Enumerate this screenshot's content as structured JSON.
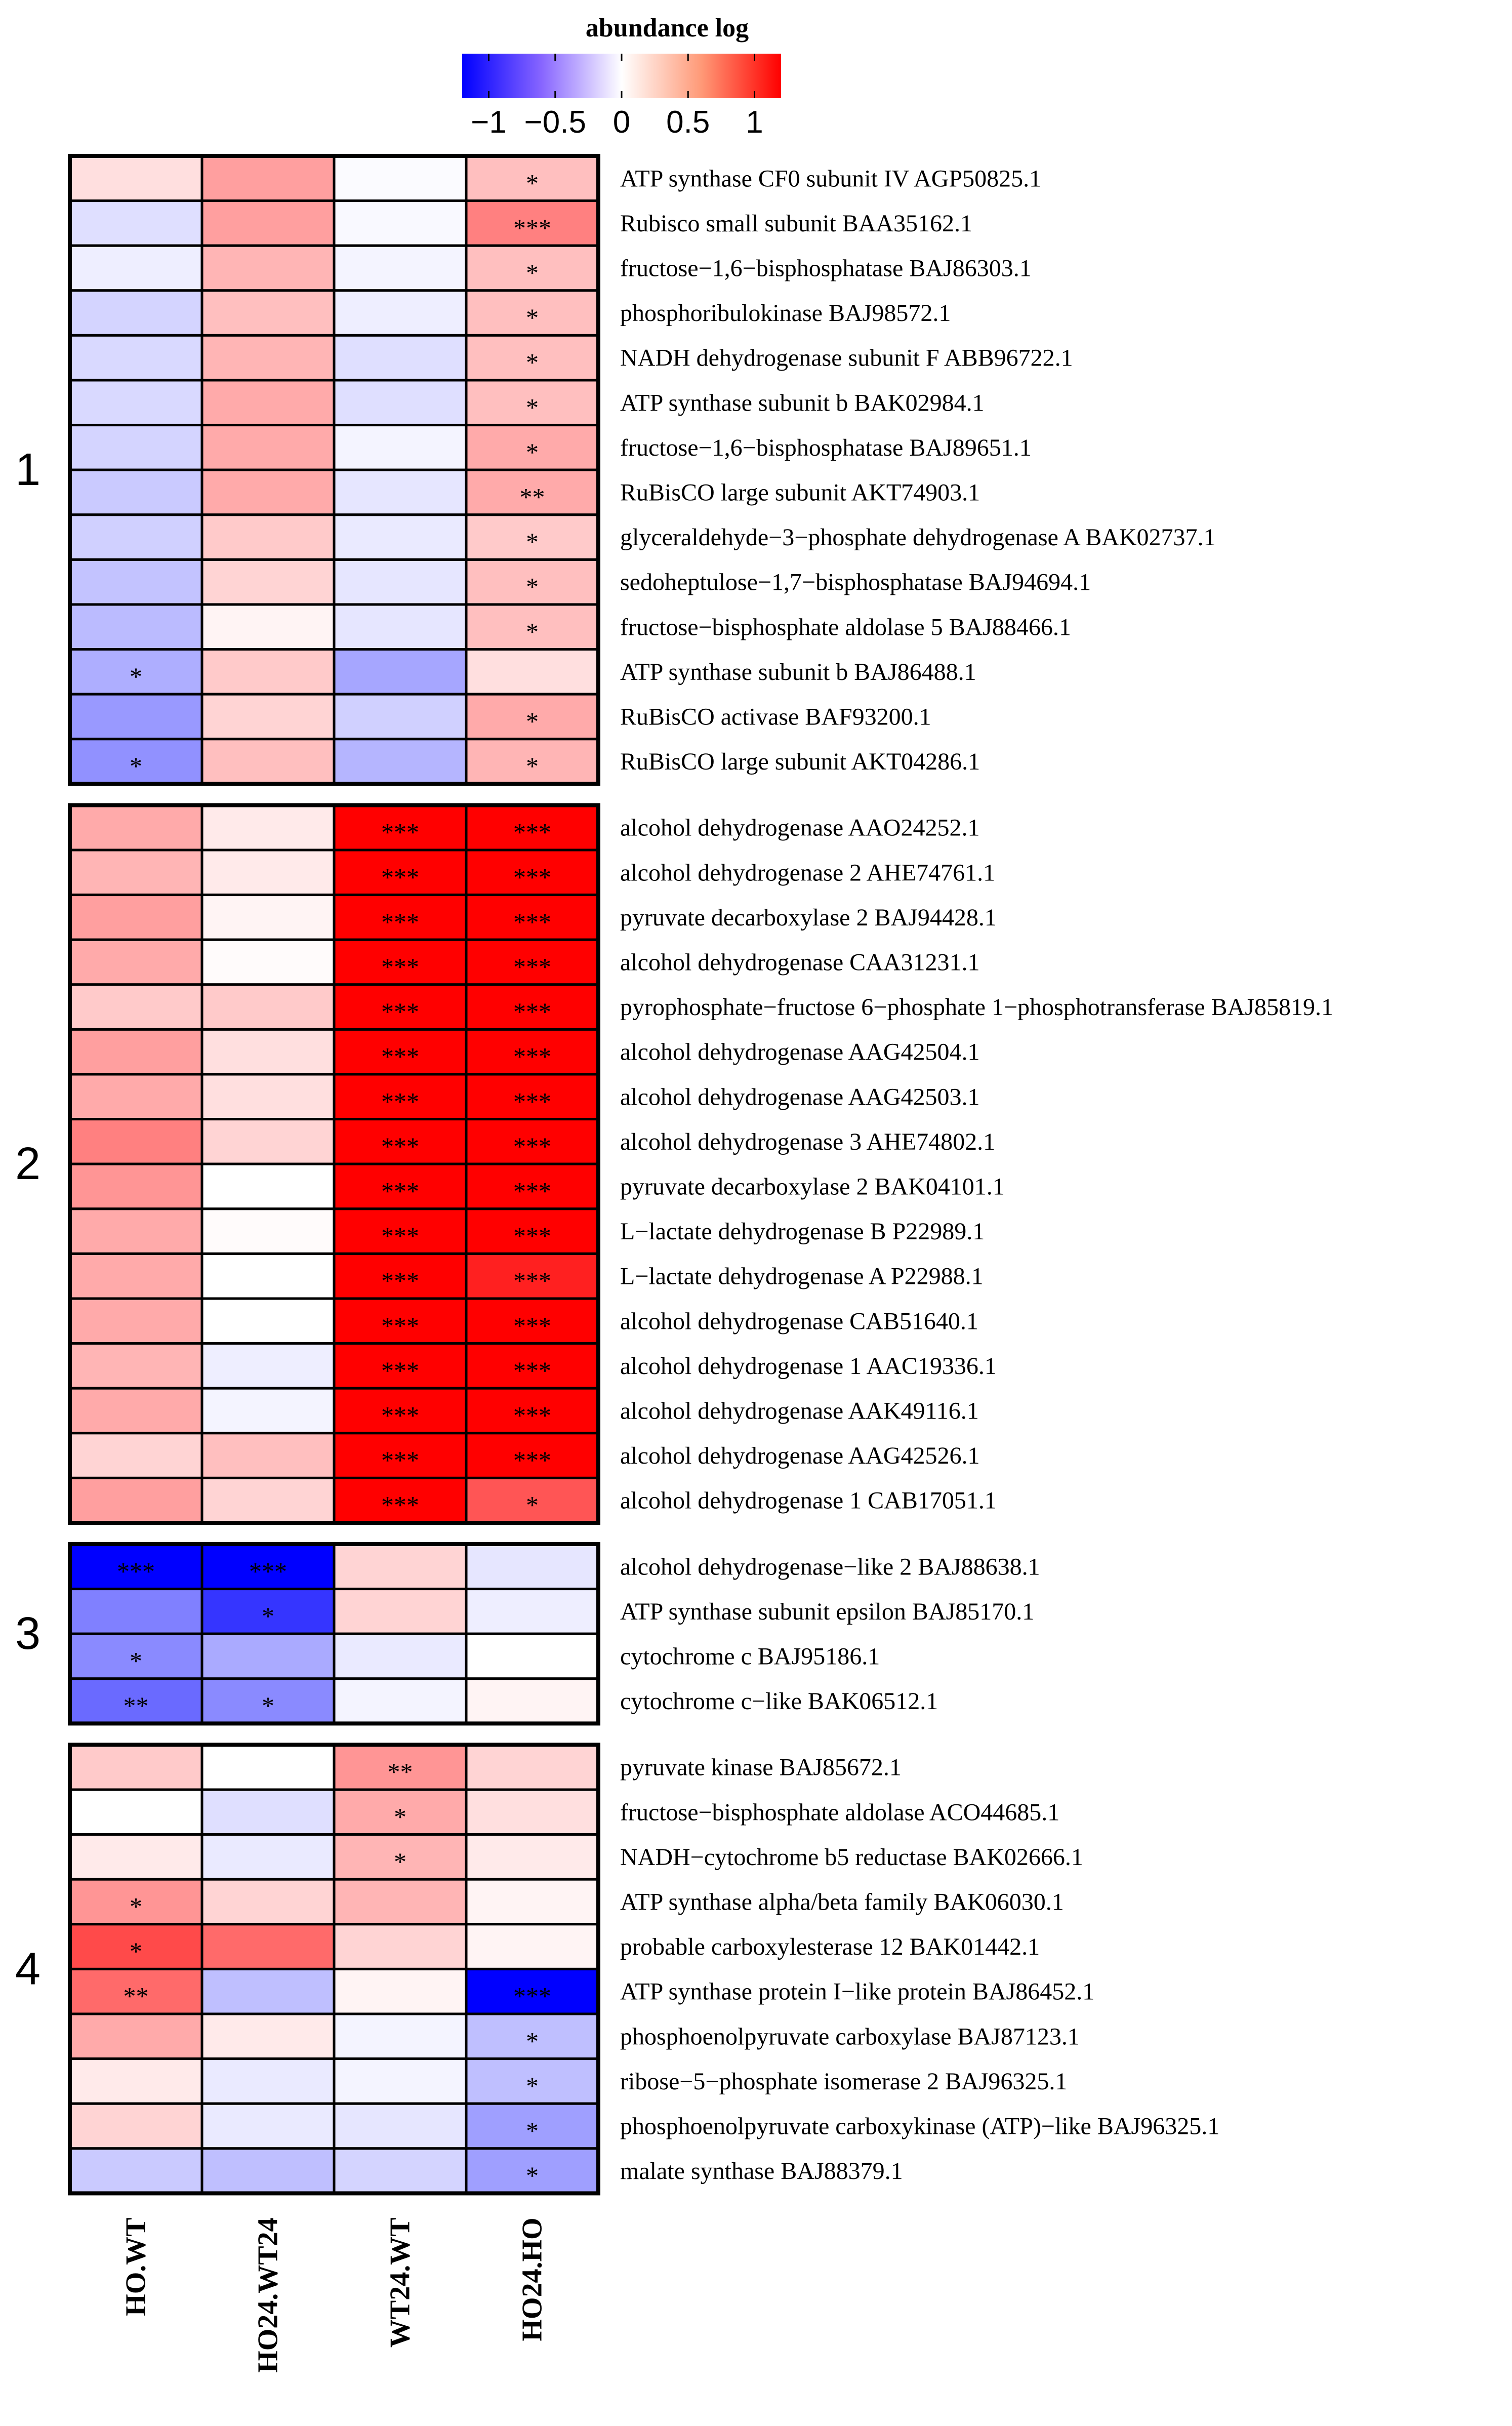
{
  "chart_data": {
    "type": "heatmap",
    "title": "abundance log",
    "colorbar": {
      "min": -1.2,
      "max": 1.2,
      "ticks": [
        -1,
        -0.5,
        0,
        0.5,
        1
      ],
      "tick_labels": [
        "−1",
        "−0.5",
        "0",
        "0.5",
        "1"
      ],
      "low_color": "#0000ff",
      "mid_color": "#ffffff",
      "high_color": "#ff0000"
    },
    "columns": [
      "HO.WT",
      "HO24.WT24",
      "WT24.WT",
      "HO24.HO"
    ],
    "clusters": [
      {
        "label": "1",
        "rows": [
          {
            "name": "ATP synthase CF0 subunit IV AGP50825.1",
            "values": [
              0.15,
              0.45,
              -0.02,
              0.3
            ],
            "sig": [
              "",
              "",
              "",
              "*"
            ]
          },
          {
            "name": "Rubisco small subunit BAA35162.1",
            "values": [
              -0.15,
              0.45,
              -0.03,
              0.6
            ],
            "sig": [
              "",
              "",
              "",
              "***"
            ]
          },
          {
            "name": "fructose−1,6−bisphosphatase BAJ86303.1",
            "values": [
              -0.08,
              0.35,
              -0.05,
              0.3
            ],
            "sig": [
              "",
              "",
              "",
              "*"
            ]
          },
          {
            "name": "phosphoribulokinase BAJ98572.1",
            "values": [
              -0.2,
              0.3,
              -0.08,
              0.3
            ],
            "sig": [
              "",
              "",
              "",
              "*"
            ]
          },
          {
            "name": "NADH dehydrogenase subunit F ABB96722.1",
            "values": [
              -0.18,
              0.35,
              -0.15,
              0.3
            ],
            "sig": [
              "",
              "",
              "",
              "*"
            ]
          },
          {
            "name": "ATP synthase subunit b BAK02984.1",
            "values": [
              -0.18,
              0.4,
              -0.15,
              0.3
            ],
            "sig": [
              "",
              "",
              "",
              "*"
            ]
          },
          {
            "name": "fructose−1,6−bisphosphatase BAJ89651.1",
            "values": [
              -0.2,
              0.4,
              -0.05,
              0.4
            ],
            "sig": [
              "",
              "",
              "",
              "*"
            ]
          },
          {
            "name": "RuBisCO large subunit AKT74903.1",
            "values": [
              -0.25,
              0.4,
              -0.12,
              0.4
            ],
            "sig": [
              "",
              "",
              "",
              "**"
            ]
          },
          {
            "name": "glyceraldehyde−3−phosphate dehydrogenase A BAK02737.1",
            "values": [
              -0.22,
              0.25,
              -0.1,
              0.25
            ],
            "sig": [
              "",
              "",
              "",
              "*"
            ]
          },
          {
            "name": "sedoheptulose−1,7−bisphosphatase BAJ94694.1",
            "values": [
              -0.28,
              0.2,
              -0.12,
              0.3
            ],
            "sig": [
              "",
              "",
              "",
              "*"
            ]
          },
          {
            "name": "fructose−bisphosphate aldolase 5 BAJ88466.1",
            "values": [
              -0.32,
              0.05,
              -0.12,
              0.3
            ],
            "sig": [
              "",
              "",
              "",
              "*"
            ]
          },
          {
            "name": "ATP synthase subunit b BAJ86488.1",
            "values": [
              -0.38,
              0.25,
              -0.42,
              0.15
            ],
            "sig": [
              "*",
              "",
              "",
              ""
            ]
          },
          {
            "name": "RuBisCO activase BAF93200.1",
            "values": [
              -0.48,
              0.2,
              -0.22,
              0.4
            ],
            "sig": [
              "",
              "",
              "",
              "*"
            ]
          },
          {
            "name": "RuBisCO large subunit AKT04286.1",
            "values": [
              -0.52,
              0.3,
              -0.35,
              0.35
            ],
            "sig": [
              "*",
              "",
              "",
              "*"
            ]
          }
        ]
      },
      {
        "label": "2",
        "rows": [
          {
            "name": "alcohol dehydrogenase AAO24252.1",
            "values": [
              0.4,
              0.1,
              1.2,
              1.2
            ],
            "sig": [
              "",
              "",
              "***",
              "***"
            ]
          },
          {
            "name": "alcohol dehydrogenase 2 AHE74761.1",
            "values": [
              0.35,
              0.1,
              1.2,
              1.2
            ],
            "sig": [
              "",
              "",
              "***",
              "***"
            ]
          },
          {
            "name": "pyruvate decarboxylase 2 BAJ94428.1",
            "values": [
              0.45,
              0.05,
              1.2,
              1.2
            ],
            "sig": [
              "",
              "",
              "***",
              "***"
            ]
          },
          {
            "name": "alcohol dehydrogenase CAA31231.1",
            "values": [
              0.4,
              0.02,
              1.2,
              1.2
            ],
            "sig": [
              "",
              "",
              "***",
              "***"
            ]
          },
          {
            "name": "pyrophosphate−fructose 6−phosphate 1−phosphotransferase BAJ85819.1",
            "values": [
              0.25,
              0.25,
              1.2,
              1.2
            ],
            "sig": [
              "",
              "",
              "***",
              "***"
            ]
          },
          {
            "name": "alcohol dehydrogenase AAG42504.1",
            "values": [
              0.45,
              0.15,
              1.2,
              1.2
            ],
            "sig": [
              "",
              "",
              "***",
              "***"
            ]
          },
          {
            "name": "alcohol dehydrogenase AAG42503.1",
            "values": [
              0.4,
              0.15,
              1.2,
              1.2
            ],
            "sig": [
              "",
              "",
              "***",
              "***"
            ]
          },
          {
            "name": "alcohol dehydrogenase 3 AHE74802.1",
            "values": [
              0.6,
              0.2,
              1.2,
              1.2
            ],
            "sig": [
              "",
              "",
              "***",
              "***"
            ]
          },
          {
            "name": "pyruvate decarboxylase 2 BAK04101.1",
            "values": [
              0.5,
              0.0,
              1.2,
              1.2
            ],
            "sig": [
              "",
              "",
              "***",
              "***"
            ]
          },
          {
            "name": "L−lactate dehydrogenase B P22989.1",
            "values": [
              0.4,
              0.02,
              1.2,
              1.2
            ],
            "sig": [
              "",
              "",
              "***",
              "***"
            ]
          },
          {
            "name": "L−lactate dehydrogenase A P22988.1",
            "values": [
              0.4,
              0.0,
              1.2,
              1.05
            ],
            "sig": [
              "",
              "",
              "***",
              "***"
            ]
          },
          {
            "name": "alcohol dehydrogenase CAB51640.1",
            "values": [
              0.4,
              0.0,
              1.2,
              1.2
            ],
            "sig": [
              "",
              "",
              "***",
              "***"
            ]
          },
          {
            "name": "alcohol dehydrogenase 1 AAC19336.1",
            "values": [
              0.35,
              -0.08,
              1.2,
              1.2
            ],
            "sig": [
              "",
              "",
              "***",
              "***"
            ]
          },
          {
            "name": "alcohol dehydrogenase AAK49116.1",
            "values": [
              0.4,
              -0.05,
              1.2,
              1.2
            ],
            "sig": [
              "",
              "",
              "***",
              "***"
            ]
          },
          {
            "name": "alcohol dehydrogenase AAG42526.1",
            "values": [
              0.2,
              0.3,
              1.2,
              1.2
            ],
            "sig": [
              "",
              "",
              "***",
              "***"
            ]
          },
          {
            "name": "alcohol dehydrogenase 1 CAB17051.1",
            "values": [
              0.45,
              0.2,
              1.2,
              0.8
            ],
            "sig": [
              "",
              "",
              "***",
              "*"
            ]
          }
        ]
      },
      {
        "label": "3",
        "rows": [
          {
            "name": "alcohol dehydrogenase−like 2 BAJ88638.1",
            "values": [
              -1.2,
              -1.2,
              0.2,
              -0.12
            ],
            "sig": [
              "***",
              "***",
              "",
              ""
            ]
          },
          {
            "name": "ATP synthase subunit epsilon BAJ85170.1",
            "values": [
              -0.6,
              -0.95,
              0.2,
              -0.08
            ],
            "sig": [
              "",
              "*",
              "",
              ""
            ]
          },
          {
            "name": "cytochrome c BAJ95186.1",
            "values": [
              -0.55,
              -0.4,
              -0.1,
              0.0
            ],
            "sig": [
              "*",
              "",
              "",
              ""
            ]
          },
          {
            "name": "cytochrome c−like BAK06512.1",
            "values": [
              -0.7,
              -0.55,
              -0.05,
              0.05
            ],
            "sig": [
              "**",
              "*",
              "",
              ""
            ]
          }
        ]
      },
      {
        "label": "4",
        "rows": [
          {
            "name": "pyruvate kinase BAJ85672.1",
            "values": [
              0.25,
              0.0,
              0.5,
              0.2
            ],
            "sig": [
              "",
              "",
              "**",
              ""
            ]
          },
          {
            "name": "fructose−bisphosphate aldolase ACO44685.1",
            "values": [
              0.0,
              -0.15,
              0.4,
              0.15
            ],
            "sig": [
              "",
              "",
              "*",
              ""
            ]
          },
          {
            "name": "NADH−cytochrome b5 reductase BAK02666.1",
            "values": [
              0.1,
              -0.1,
              0.35,
              0.1
            ],
            "sig": [
              "",
              "",
              "*",
              ""
            ]
          },
          {
            "name": "ATP synthase alpha/beta family BAK06030.1",
            "values": [
              0.5,
              0.2,
              0.35,
              0.05
            ],
            "sig": [
              "*",
              "",
              "",
              ""
            ]
          },
          {
            "name": "probable carboxylesterase 12 BAK01442.1",
            "values": [
              0.85,
              0.7,
              0.2,
              0.05
            ],
            "sig": [
              "*",
              "",
              "",
              ""
            ]
          },
          {
            "name": "ATP synthase protein I−like protein BAJ86452.1",
            "values": [
              0.7,
              -0.3,
              0.05,
              -1.2
            ],
            "sig": [
              "**",
              "",
              "",
              "***"
            ]
          },
          {
            "name": "phosphoenolpyruvate carboxylase BAJ87123.1",
            "values": [
              0.4,
              0.1,
              -0.05,
              -0.3
            ],
            "sig": [
              "",
              "",
              "",
              "*"
            ]
          },
          {
            "name": "ribose−5−phosphate isomerase 2 BAJ96325.1",
            "values": [
              0.1,
              -0.1,
              -0.05,
              -0.3
            ],
            "sig": [
              "",
              "",
              "",
              "*"
            ]
          },
          {
            "name": "phosphoenolpyruvate carboxykinase (ATP)−like BAJ96325.1",
            "values": [
              0.2,
              -0.1,
              -0.12,
              -0.45
            ],
            "sig": [
              "",
              "",
              "",
              "*"
            ]
          },
          {
            "name": "malate synthase BAJ88379.1",
            "values": [
              -0.25,
              -0.3,
              -0.2,
              -0.45
            ],
            "sig": [
              "",
              "",
              "",
              "*"
            ]
          }
        ]
      }
    ]
  }
}
